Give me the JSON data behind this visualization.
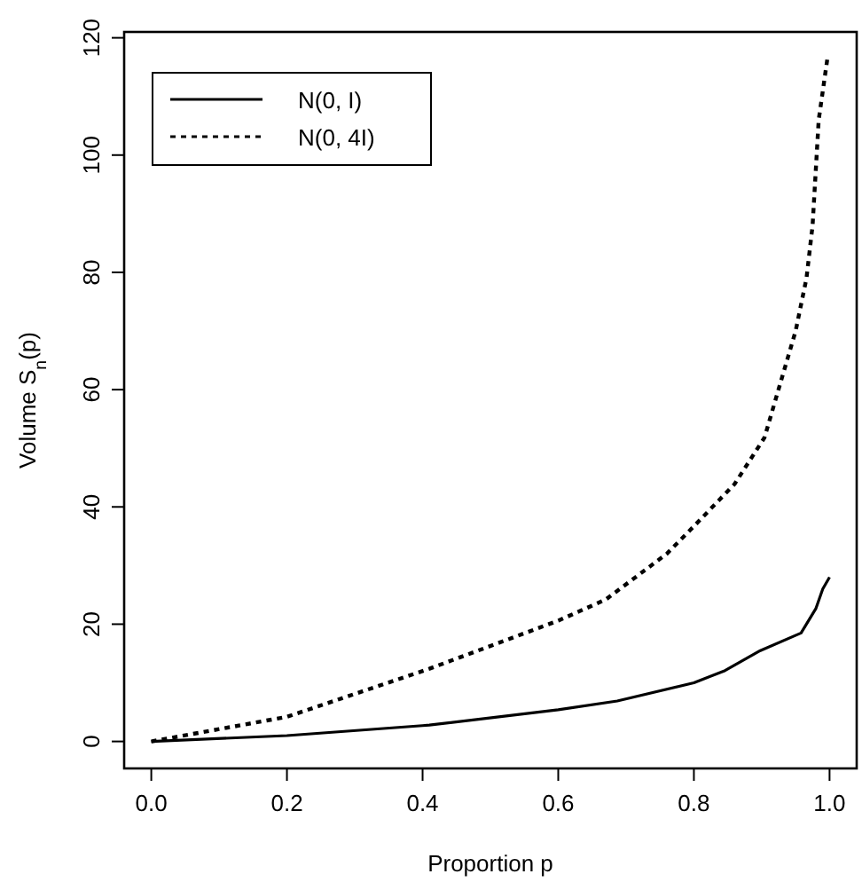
{
  "chart_data": {
    "type": "line",
    "xlabel": "Proportion p",
    "ylabel": "Volume S$_{n}$(p)",
    "xlim": [
      -0.04,
      1.04
    ],
    "ylim": [
      -4.6,
      121
    ],
    "xticks": [
      {
        "value": 0,
        "label": "0.0"
      },
      0.2,
      0.4,
      0.6,
      0.8,
      {
        "value": 1,
        "label": "1.0"
      }
    ],
    "yticks": [
      0,
      20,
      40,
      60,
      80,
      100,
      120
    ],
    "grid": false,
    "legend": "top left",
    "series": [
      {
        "name": "N(0, I)",
        "color": "#000000",
        "line_style": "solid",
        "x": [
          0,
          0.2,
          0.4,
          0.41,
          0.6,
          0.687,
          0.8,
          0.846,
          0.898,
          0.958,
          0.98,
          0.99,
          1.0
        ],
        "values": [
          0,
          1.0,
          2.7,
          2.8,
          5.4,
          6.9,
          10,
          12.1,
          15.5,
          18.5,
          22.7,
          26,
          28
        ]
      },
      {
        "name": "N(0, 4I)",
        "color": "#000000",
        "line_style": "dotted",
        "x": [
          0,
          0.2,
          0.41,
          0.6,
          0.67,
          0.76,
          0.8,
          0.86,
          0.904,
          0.95,
          0.966,
          0.975,
          0.984,
          0.997
        ],
        "values": [
          0,
          4.2,
          12.4,
          20.6,
          24.2,
          32,
          36.7,
          43.9,
          51.8,
          70,
          79,
          88,
          106,
          116.6
        ]
      }
    ]
  }
}
